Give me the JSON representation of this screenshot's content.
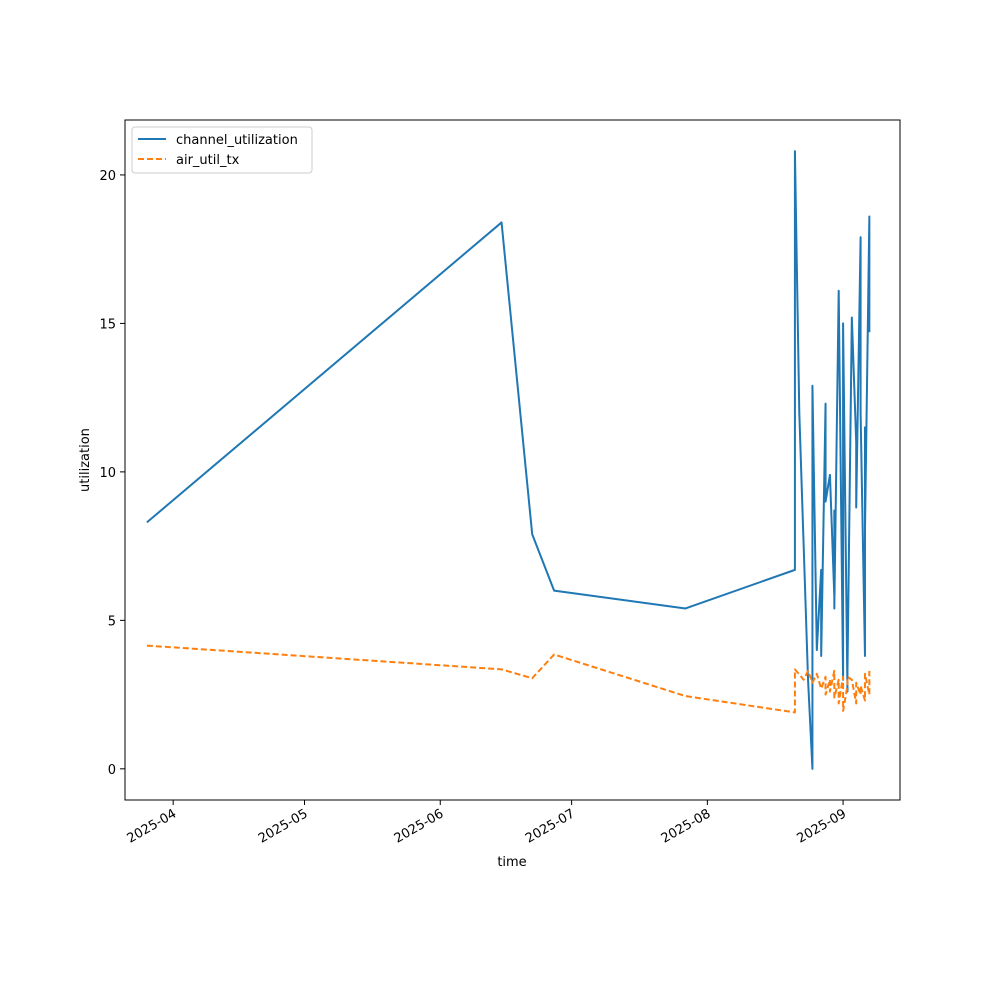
{
  "chart_data": {
    "type": "line",
    "xlabel": "time",
    "ylabel": "utilization",
    "xlim": [
      "2025-03-21",
      "2025-09-14"
    ],
    "ylim": [
      -1.05,
      21.85
    ],
    "x_ticks": [
      "2025-04",
      "2025-05",
      "2025-06",
      "2025-07",
      "2025-08",
      "2025-09"
    ],
    "y_ticks": [
      0,
      5,
      10,
      15,
      20
    ],
    "grid": false,
    "legend": "upper-left",
    "series": [
      {
        "name": "channel_utilization",
        "color": "#1f77b4",
        "style": "solid",
        "points": [
          [
            "2025-03-26",
            8.3
          ],
          [
            "2025-06-15",
            18.4
          ],
          [
            "2025-06-22",
            7.9
          ],
          [
            "2025-06-27",
            6.0
          ],
          [
            "2025-07-27",
            5.4
          ],
          [
            "2025-08-21",
            6.7
          ],
          [
            "2025-08-21",
            20.8
          ],
          [
            "2025-08-22",
            12.0
          ],
          [
            "2025-08-24",
            3.0
          ],
          [
            "2025-08-25",
            0.0
          ],
          [
            "2025-08-25",
            12.9
          ],
          [
            "2025-08-26",
            4.0
          ],
          [
            "2025-08-27",
            6.7
          ],
          [
            "2025-08-27",
            3.8
          ],
          [
            "2025-08-28",
            12.3
          ],
          [
            "2025-08-28",
            9.0
          ],
          [
            "2025-08-29",
            9.9
          ],
          [
            "2025-08-30",
            5.8
          ],
          [
            "2025-08-30",
            8.7
          ],
          [
            "2025-08-30",
            5.4
          ],
          [
            "2025-08-31",
            16.1
          ],
          [
            "2025-09-01",
            3.0
          ],
          [
            "2025-09-01",
            15.0
          ],
          [
            "2025-09-02",
            2.6
          ],
          [
            "2025-09-02",
            3.3
          ],
          [
            "2025-09-03",
            15.2
          ],
          [
            "2025-09-04",
            11.0
          ],
          [
            "2025-09-04",
            8.8
          ],
          [
            "2025-09-05",
            17.9
          ],
          [
            "2025-09-05",
            12.0
          ],
          [
            "2025-09-06",
            3.8
          ],
          [
            "2025-09-06",
            11.5
          ],
          [
            "2025-09-06",
            8.0
          ],
          [
            "2025-09-07",
            18.6
          ],
          [
            "2025-09-07",
            14.7
          ]
        ]
      },
      {
        "name": "air_util_tx",
        "color": "#ff7f0e",
        "style": "dashed",
        "points": [
          [
            "2025-03-26",
            4.15
          ],
          [
            "2025-06-15",
            3.35
          ],
          [
            "2025-06-22",
            3.05
          ],
          [
            "2025-06-27",
            3.85
          ],
          [
            "2025-07-27",
            2.45
          ],
          [
            "2025-08-21",
            1.9
          ],
          [
            "2025-08-21",
            3.35
          ],
          [
            "2025-08-23",
            3.0
          ],
          [
            "2025-08-24",
            3.3
          ],
          [
            "2025-08-25",
            2.9
          ],
          [
            "2025-08-26",
            3.2
          ],
          [
            "2025-08-27",
            2.7
          ],
          [
            "2025-08-28",
            3.1
          ],
          [
            "2025-08-28",
            2.5
          ],
          [
            "2025-08-29",
            3.0
          ],
          [
            "2025-08-29",
            2.6
          ],
          [
            "2025-08-30",
            3.3
          ],
          [
            "2025-08-30",
            2.4
          ],
          [
            "2025-08-31",
            3.0
          ],
          [
            "2025-08-31",
            2.2
          ],
          [
            "2025-09-01",
            3.1
          ],
          [
            "2025-09-01",
            1.95
          ],
          [
            "2025-09-02",
            2.8
          ],
          [
            "2025-09-02",
            3.1
          ],
          [
            "2025-09-03",
            3.0
          ],
          [
            "2025-09-04",
            2.2
          ],
          [
            "2025-09-04",
            2.9
          ],
          [
            "2025-09-05",
            2.5
          ],
          [
            "2025-09-05",
            2.8
          ],
          [
            "2025-09-06",
            2.3
          ],
          [
            "2025-09-06",
            3.2
          ],
          [
            "2025-09-07",
            2.5
          ],
          [
            "2025-09-07",
            3.3
          ]
        ]
      }
    ]
  }
}
